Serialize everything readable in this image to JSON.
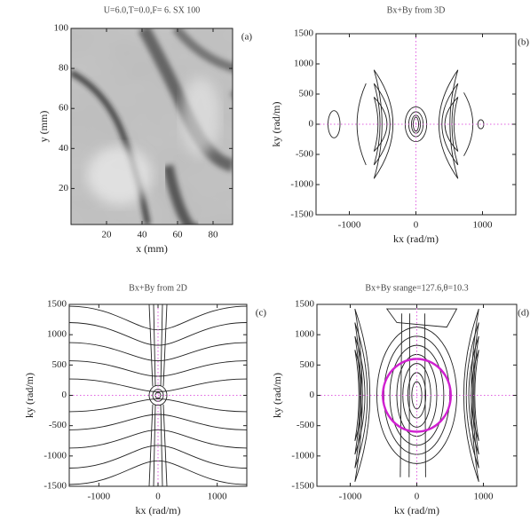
{
  "chart_data": [
    {
      "type": "image",
      "title": "U=6.0,T=0.0,F= 6.  SX 100",
      "panel_label": "(a)",
      "x_label": "x (mm)",
      "y_label": "y (mm)",
      "xlim": [
        0,
        91
      ],
      "ylim": [
        2,
        100
      ],
      "xticks": [
        20,
        40,
        60,
        80
      ],
      "yticks": [
        20,
        40,
        60,
        80,
        100
      ]
    },
    {
      "type": "contour",
      "variant": "3d",
      "title": "Bx+By from 3D",
      "panel_label": "(b)",
      "x_label": "kx (rad/m)",
      "y_label": "ky (rad/m)",
      "xlim": [
        -1500,
        1500
      ],
      "ylim": [
        -1500,
        1500
      ],
      "xticks": [
        -1000,
        0,
        1000
      ],
      "yticks": [
        -1500,
        -1000,
        -500,
        0,
        500,
        1000,
        1500
      ]
    },
    {
      "type": "contour",
      "variant": "2d",
      "title": "Bx+By from 2D",
      "panel_label": "(c)",
      "x_label": "kx (rad/m)",
      "y_label": "ky (rad/m)",
      "xlim": [
        -1500,
        1500
      ],
      "ylim": [
        -1500,
        1500
      ],
      "xticks": [
        -1000,
        0,
        1000
      ],
      "yticks": [
        -1500,
        -1000,
        -500,
        0,
        500,
        1000,
        1500
      ]
    },
    {
      "type": "contour",
      "variant": "fit",
      "title": "Bx+By srange=127.6,θ=10.3",
      "panel_label": "(d)",
      "x_label": "kx (rad/m)",
      "y_label": "ky (rad/m)",
      "xlim": [
        -1500,
        1500
      ],
      "ylim": [
        -1500,
        1500
      ],
      "xticks": [
        -1000,
        0,
        1000
      ],
      "yticks": [
        -1500,
        -1000,
        -500,
        0,
        500,
        1000,
        1500
      ]
    }
  ]
}
